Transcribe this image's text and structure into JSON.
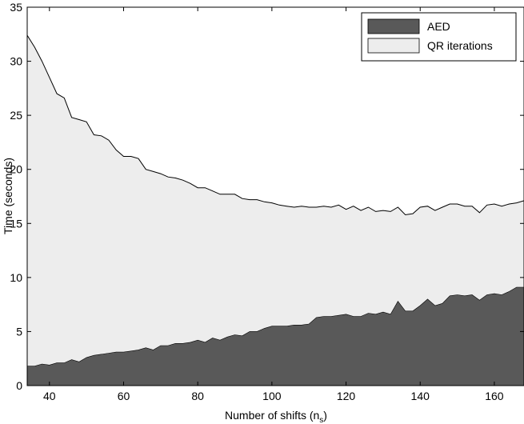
{
  "chart_data": {
    "type": "area",
    "stacked": true,
    "xlabel": "Number of shifts (n",
    "xlabel_sub": "s",
    "xlabel_tail": ")",
    "ylabel": "Time (seconds)",
    "xlim": [
      34,
      168
    ],
    "ylim": [
      0,
      35
    ],
    "xticks": [
      40,
      60,
      80,
      100,
      120,
      140,
      160
    ],
    "yticks": [
      0,
      5,
      10,
      15,
      20,
      25,
      30,
      35
    ],
    "legend_position": "top-right",
    "grid": false,
    "x": [
      34,
      36,
      38,
      40,
      42,
      44,
      46,
      48,
      50,
      52,
      54,
      56,
      58,
      60,
      62,
      64,
      66,
      68,
      70,
      72,
      74,
      76,
      78,
      80,
      82,
      84,
      86,
      88,
      90,
      92,
      94,
      96,
      98,
      100,
      102,
      104,
      106,
      108,
      110,
      112,
      114,
      116,
      118,
      120,
      122,
      124,
      126,
      128,
      130,
      132,
      134,
      136,
      138,
      140,
      142,
      144,
      146,
      148,
      150,
      152,
      154,
      156,
      158,
      160,
      162,
      164,
      166,
      168
    ],
    "series": [
      {
        "name": "AED",
        "color": "#595959",
        "values": [
          1.8,
          1.8,
          2.0,
          1.9,
          2.1,
          2.1,
          2.4,
          2.2,
          2.6,
          2.8,
          2.9,
          3.0,
          3.1,
          3.1,
          3.2,
          3.3,
          3.5,
          3.3,
          3.7,
          3.7,
          3.9,
          3.9,
          4.0,
          4.2,
          4.0,
          4.4,
          4.2,
          4.5,
          4.7,
          4.6,
          5.0,
          5.0,
          5.3,
          5.5,
          5.5,
          5.5,
          5.6,
          5.6,
          5.7,
          6.3,
          6.4,
          6.4,
          6.5,
          6.6,
          6.4,
          6.4,
          6.7,
          6.6,
          6.8,
          6.6,
          7.8,
          6.9,
          6.9,
          7.4,
          8.0,
          7.4,
          7.6,
          8.3,
          8.4,
          8.3,
          8.4,
          7.9,
          8.4,
          8.5,
          8.4,
          8.7,
          9.1,
          9.1
        ]
      },
      {
        "name": "QR iterations",
        "color": "#ededed",
        "total": [
          32.4,
          31.3,
          30.0,
          28.5,
          27.0,
          26.6,
          24.8,
          24.6,
          24.4,
          23.2,
          23.1,
          22.7,
          21.8,
          21.2,
          21.2,
          21.0,
          20.0,
          19.8,
          19.6,
          19.3,
          19.2,
          19.0,
          18.7,
          18.3,
          18.3,
          18.0,
          17.7,
          17.7,
          17.7,
          17.3,
          17.2,
          17.2,
          17.0,
          16.9,
          16.7,
          16.6,
          16.5,
          16.6,
          16.5,
          16.5,
          16.6,
          16.5,
          16.7,
          16.3,
          16.6,
          16.2,
          16.5,
          16.1,
          16.2,
          16.1,
          16.5,
          15.8,
          15.9,
          16.5,
          16.6,
          16.2,
          16.5,
          16.8,
          16.8,
          16.6,
          16.6,
          16.0,
          16.7,
          16.8,
          16.6,
          16.8,
          16.9,
          17.1
        ]
      }
    ]
  }
}
